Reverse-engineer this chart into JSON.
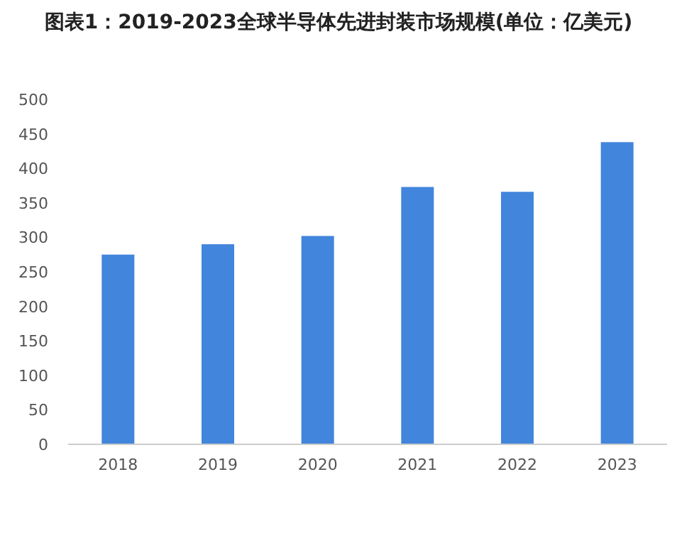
{
  "chart_data": {
    "type": "bar",
    "title": "图表1：2019-2023全球半导体先进封装市场规模(单位：亿美元)",
    "categories": [
      "2018",
      "2019",
      "2020",
      "2021",
      "2022",
      "2023"
    ],
    "values": [
      275,
      290,
      302,
      373,
      366,
      438
    ],
    "color": "#4285dc",
    "ylim": [
      0,
      500
    ],
    "yticks": [
      0,
      50,
      100,
      150,
      200,
      250,
      300,
      350,
      400,
      450,
      500
    ]
  }
}
